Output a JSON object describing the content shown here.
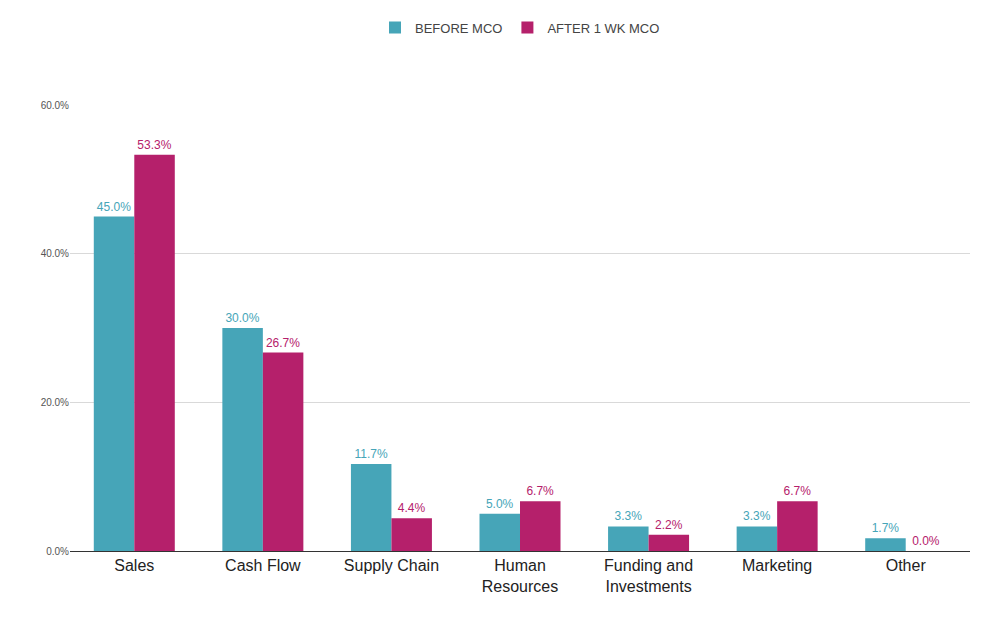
{
  "chart_data": {
    "type": "bar",
    "categories": [
      "Sales",
      "Cash Flow",
      "Supply Chain",
      "Human Resources",
      "Funding and Investments",
      "Marketing",
      "Other"
    ],
    "series": [
      {
        "name": "BEFORE MCO",
        "color": "#46a5b8",
        "values": [
          45.0,
          30.0,
          11.7,
          5.0,
          3.3,
          3.3,
          1.7
        ],
        "value_labels": [
          "45.0%",
          "30.0%",
          "11.7%",
          "5.0%",
          "3.3%",
          "3.3%",
          "1.7%"
        ]
      },
      {
        "name": "AFTER 1 WK MCO",
        "color": "#b5206b",
        "values": [
          53.3,
          26.7,
          4.4,
          6.7,
          2.2,
          6.7,
          0.0
        ],
        "value_labels": [
          "53.3%",
          "26.7%",
          "4.4%",
          "6.7%",
          "2.2%",
          "6.7%",
          "0.0%"
        ]
      }
    ],
    "ylim": [
      0,
      60
    ],
    "yticks": [
      {
        "value": 0,
        "label": "0.0%"
      },
      {
        "value": 20,
        "label": "20.0%"
      },
      {
        "value": 40,
        "label": "40.0%"
      },
      {
        "value": 60,
        "label": "60.0%"
      }
    ],
    "grid": true,
    "legend": "top",
    "data_labels": true
  }
}
